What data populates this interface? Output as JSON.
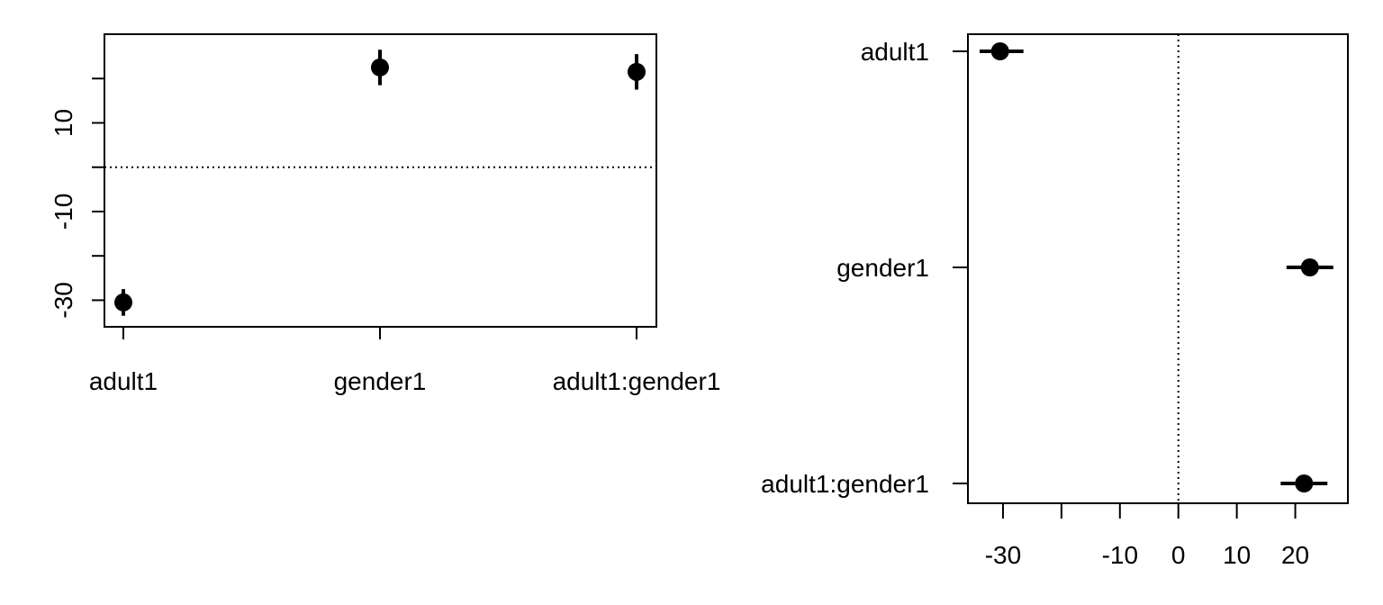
{
  "colors": {
    "ink": "#000000",
    "background": "#ffffff"
  },
  "chart_data": [
    {
      "type": "scatter",
      "orientation": "vertical",
      "categories": [
        "adult1",
        "gender1",
        "adult1:gender1"
      ],
      "series": [
        {
          "values": [
            -30.5,
            22.5,
            21.5
          ],
          "ci_low": [
            -33.5,
            18.5,
            17.5
          ],
          "ci_high": [
            -27.5,
            26.5,
            25.5
          ]
        }
      ],
      "ylim": [
        -36,
        30
      ],
      "yticks": [
        -30,
        -20,
        -10,
        0,
        10,
        20
      ],
      "ytick_labels": [
        "-30",
        "",
        "-10",
        "",
        "10",
        ""
      ],
      "reference_line": 0,
      "grid": false,
      "title": "",
      "xlabel": "",
      "ylabel": ""
    },
    {
      "type": "scatter",
      "orientation": "horizontal",
      "categories": [
        "adult1",
        "gender1",
        "adult1:gender1"
      ],
      "series": [
        {
          "values": [
            -30.5,
            22.5,
            21.5
          ],
          "ci_low": [
            -34,
            18.5,
            17.5
          ],
          "ci_high": [
            -26.5,
            26.5,
            25.5
          ]
        }
      ],
      "xlim": [
        -36,
        29
      ],
      "xticks": [
        -30,
        -20,
        -10,
        0,
        10,
        20
      ],
      "xtick_labels": [
        "-30",
        "",
        "-10",
        "0",
        "10",
        "20"
      ],
      "reference_line": 0,
      "grid": false,
      "title": "",
      "xlabel": "",
      "ylabel": ""
    }
  ]
}
